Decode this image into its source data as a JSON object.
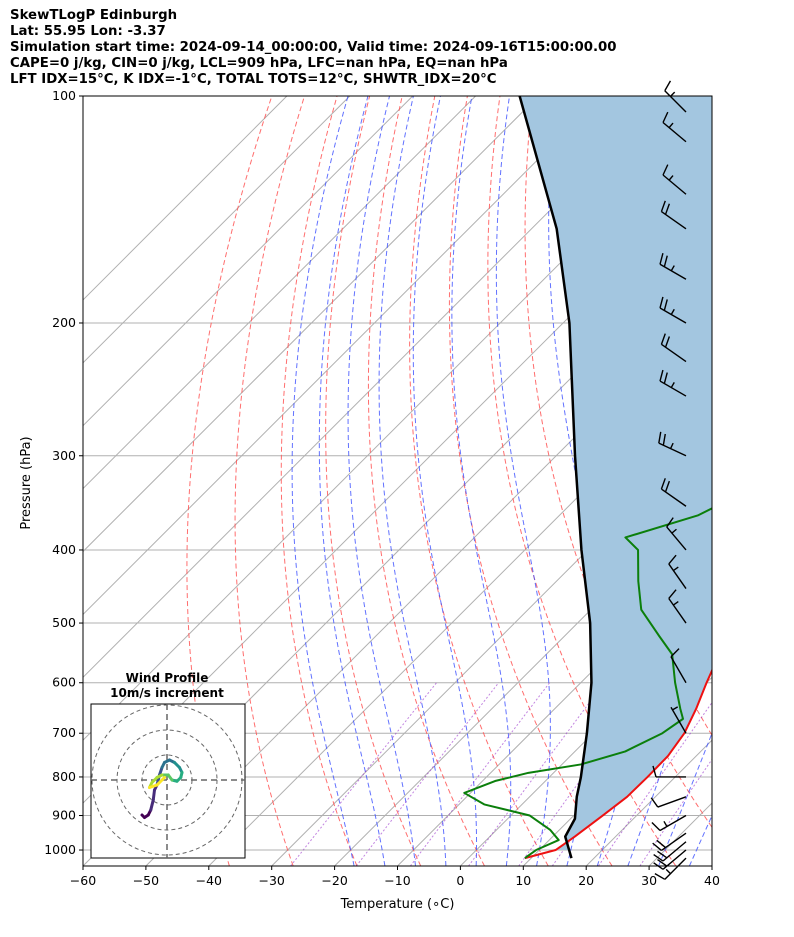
{
  "header": {
    "line1": "SkewTLogP Edinburgh",
    "line2": "Lat: 55.95   Lon: -3.37",
    "line3": "Simulation start time: 2024-09-14_00:00:00, Valid time: 2024-09-16T15:00:00.00",
    "line4": "CAPE=0 j/kg, CIN=0 j/kg, LCL=909 hPa, LFC=nan hPa, EQ=nan hPa",
    "line5": "LFT IDX=15°C, K IDX=-1°C, TOTAL TOTS=12°C, SHWTR_IDX=20°C"
  },
  "chart_data": {
    "type": "line",
    "subtype": "skew-T log-P diagram",
    "xlabel": "Temperature (∘C)",
    "ylabel": "Pressure (hPa)",
    "xlim": [
      -60,
      40
    ],
    "ylim_hpa": [
      1050,
      100
    ],
    "y_scale": "log",
    "x_ticks": [
      "−60",
      "−50",
      "−40",
      "−30",
      "−20",
      "−10",
      "0",
      "10",
      "20",
      "30",
      "40"
    ],
    "y_ticks": [
      1000,
      900,
      800,
      700,
      600,
      500,
      400,
      300,
      200,
      100
    ],
    "grid": true,
    "colors": {
      "temperature": "#ee1111",
      "dewpoint": "#0b7f0b",
      "parcel": "#000000",
      "shading": "#a3c6e0",
      "dry_adiabat": "#ff5555",
      "moist_adiabat": "#3b4fff",
      "mixing_ratio": "#9933cc",
      "isotherm_grid": "#b0b0b0"
    },
    "series": [
      {
        "name": "",
        "role": "temperature",
        "points": [
          [
            1025,
            9
          ],
          [
            1000,
            12.6
          ],
          [
            960,
            13.5
          ],
          [
            900,
            14.6
          ],
          [
            850,
            15.5
          ],
          [
            800,
            15.6
          ],
          [
            750,
            15.5
          ],
          [
            700,
            14.5
          ],
          [
            650,
            12.5
          ],
          [
            600,
            10
          ],
          [
            550,
            7.5
          ],
          [
            500,
            5
          ],
          [
            450,
            2.5
          ],
          [
            400,
            0
          ],
          [
            370,
            -2
          ],
          [
            340,
            -4
          ],
          [
            310,
            -7
          ],
          [
            290,
            -9
          ],
          [
            270,
            -12
          ],
          [
            250,
            -15
          ],
          [
            230,
            -19
          ],
          [
            210,
            -24
          ],
          [
            195,
            -27
          ],
          [
            185,
            -32
          ],
          [
            178,
            -37
          ],
          [
            165,
            -39
          ],
          [
            150,
            -39
          ],
          [
            140,
            -40
          ],
          [
            130,
            -40
          ],
          [
            120,
            -40
          ],
          [
            110,
            -40
          ],
          [
            100,
            -40
          ]
        ]
      },
      {
        "name": "",
        "role": "dewpoint",
        "points": [
          [
            1025,
            9
          ],
          [
            1000,
            9.5
          ],
          [
            970,
            11.5
          ],
          [
            940,
            8.5
          ],
          [
            900,
            3
          ],
          [
            870,
            -6
          ],
          [
            840,
            -11
          ],
          [
            810,
            -8
          ],
          [
            790,
            -4
          ],
          [
            770,
            3
          ],
          [
            740,
            8
          ],
          [
            700,
            11
          ],
          [
            670,
            12
          ],
          [
            650,
            10
          ],
          [
            600,
            5
          ],
          [
            550,
            0
          ],
          [
            520,
            -5
          ],
          [
            480,
            -12
          ],
          [
            440,
            -17
          ],
          [
            400,
            -22
          ],
          [
            385,
            -26
          ],
          [
            360,
            -18
          ],
          [
            340,
            -15
          ],
          [
            320,
            -15
          ],
          [
            300,
            -18
          ],
          [
            270,
            -27
          ],
          [
            250,
            -28
          ],
          [
            230,
            -27
          ],
          [
            210,
            -31
          ],
          [
            195,
            -30
          ],
          [
            175,
            -34
          ],
          [
            150,
            -42
          ],
          [
            140,
            -39
          ],
          [
            130,
            -36
          ],
          [
            120,
            -37
          ],
          [
            110,
            -34
          ],
          [
            100,
            -30
          ]
        ]
      },
      {
        "name": "",
        "role": "parcel",
        "points": [
          [
            1025,
            16.4
          ],
          [
            960,
            12
          ],
          [
            909,
            10.7
          ],
          [
            850,
            7.5
          ],
          [
            800,
            5
          ],
          [
            700,
            -1
          ],
          [
            600,
            -8.3
          ],
          [
            500,
            -18
          ],
          [
            400,
            -31
          ],
          [
            300,
            -47
          ],
          [
            200,
            -69
          ],
          [
            150,
            -86
          ],
          [
            100,
            -113
          ]
        ]
      }
    ],
    "wind_barbs": [
      {
        "p": 1025,
        "speed_kt": 18,
        "dir_deg": 225
      },
      {
        "p": 1000,
        "speed_kt": 20,
        "dir_deg": 230
      },
      {
        "p": 975,
        "speed_kt": 20,
        "dir_deg": 230
      },
      {
        "p": 950,
        "speed_kt": 20,
        "dir_deg": 235
      },
      {
        "p": 900,
        "speed_kt": 15,
        "dir_deg": 240
      },
      {
        "p": 850,
        "speed_kt": 10,
        "dir_deg": 250
      },
      {
        "p": 800,
        "speed_kt": 10,
        "dir_deg": 270
      },
      {
        "p": 700,
        "speed_kt": 5,
        "dir_deg": 330
      },
      {
        "p": 600,
        "speed_kt": 10,
        "dir_deg": 330
      },
      {
        "p": 500,
        "speed_kt": 15,
        "dir_deg": 325
      },
      {
        "p": 450,
        "speed_kt": 15,
        "dir_deg": 325
      },
      {
        "p": 400,
        "speed_kt": 15,
        "dir_deg": 320
      },
      {
        "p": 350,
        "speed_kt": 20,
        "dir_deg": 305
      },
      {
        "p": 300,
        "speed_kt": 25,
        "dir_deg": 295
      },
      {
        "p": 250,
        "speed_kt": 25,
        "dir_deg": 300
      },
      {
        "p": 225,
        "speed_kt": 20,
        "dir_deg": 305
      },
      {
        "p": 200,
        "speed_kt": 25,
        "dir_deg": 300
      },
      {
        "p": 175,
        "speed_kt": 25,
        "dir_deg": 300
      },
      {
        "p": 150,
        "speed_kt": 20,
        "dir_deg": 305
      },
      {
        "p": 135,
        "speed_kt": 15,
        "dir_deg": 310
      },
      {
        "p": 115,
        "speed_kt": 15,
        "dir_deg": 310
      },
      {
        "p": 105,
        "speed_kt": 15,
        "dir_deg": 315
      }
    ],
    "inset": {
      "title_line1": "Wind Profile",
      "title_line2": "10m/s increment",
      "rings_ms": [
        10,
        20,
        30
      ],
      "hodograph_uv": [
        [
          -10,
          14
        ],
        [
          -9,
          15
        ],
        [
          -7.5,
          14
        ],
        [
          -6.5,
          12
        ],
        [
          -5.5,
          8
        ],
        [
          -5,
          4
        ],
        [
          -4,
          2
        ],
        [
          -3,
          -2
        ],
        [
          -2,
          -5
        ],
        [
          -1,
          -7
        ],
        [
          1,
          -8
        ],
        [
          3,
          -7
        ],
        [
          5,
          -5
        ],
        [
          6,
          -3
        ],
        [
          5.5,
          -1
        ],
        [
          4,
          0.5
        ],
        [
          2,
          0
        ],
        [
          0.5,
          -2
        ],
        [
          -2,
          -2
        ],
        [
          -4,
          -1
        ],
        [
          -6,
          1
        ],
        [
          -7,
          3
        ],
        [
          -4,
          2
        ],
        [
          -1,
          -1
        ]
      ],
      "hodograph_colormap": "viridis"
    }
  }
}
